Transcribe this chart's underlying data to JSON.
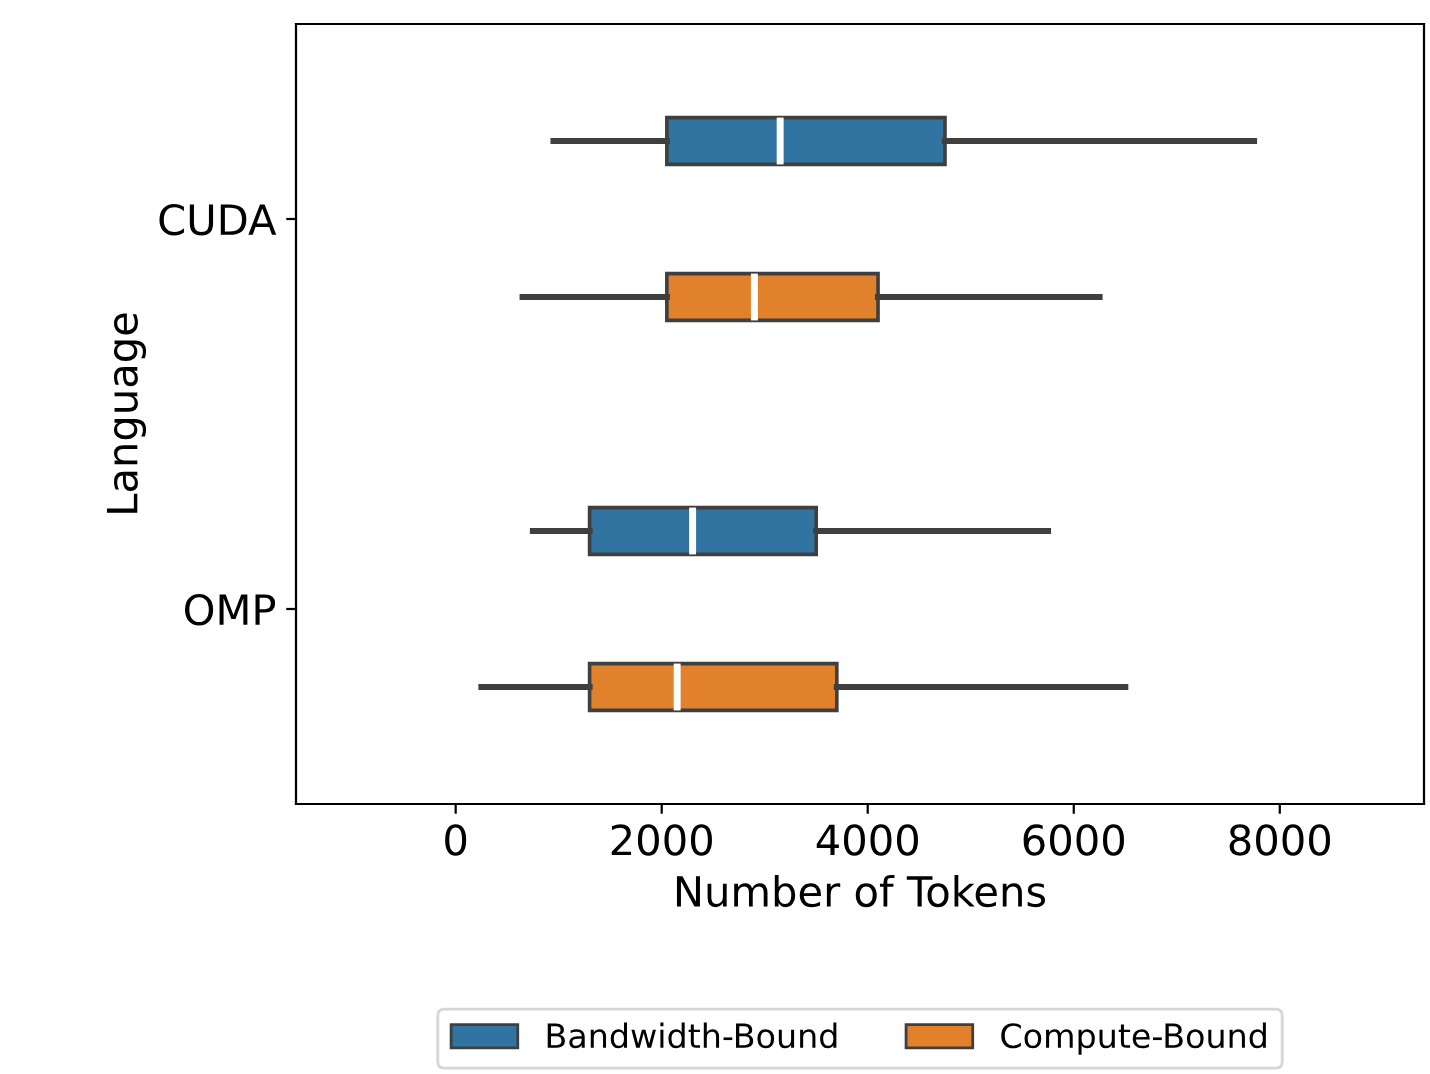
{
  "chart_data": {
    "type": "box",
    "orientation": "horizontal",
    "xlabel": "Number of Tokens",
    "ylabel": "Language",
    "categories": [
      "CUDA",
      "OMP"
    ],
    "xlim": [
      -1550,
      9400
    ],
    "xticks": [
      0,
      2000,
      4000,
      6000,
      8000
    ],
    "legend": "bottom",
    "grid": false,
    "series": [
      {
        "name": "Bandwidth-Bound",
        "color": "#3274a1",
        "boxes": [
          {
            "low": 950,
            "q1": 2050,
            "median": 3150,
            "q3": 4750,
            "high": 7750
          },
          {
            "low": 750,
            "q1": 1300,
            "median": 2300,
            "q3": 3500,
            "high": 5750
          }
        ]
      },
      {
        "name": "Compute-Bound",
        "color": "#e1812c",
        "boxes": [
          {
            "low": 650,
            "q1": 2050,
            "median": 2900,
            "q3": 4100,
            "high": 6250
          },
          {
            "low": 250,
            "q1": 1300,
            "median": 2150,
            "q3": 3700,
            "high": 6500
          }
        ]
      }
    ]
  }
}
